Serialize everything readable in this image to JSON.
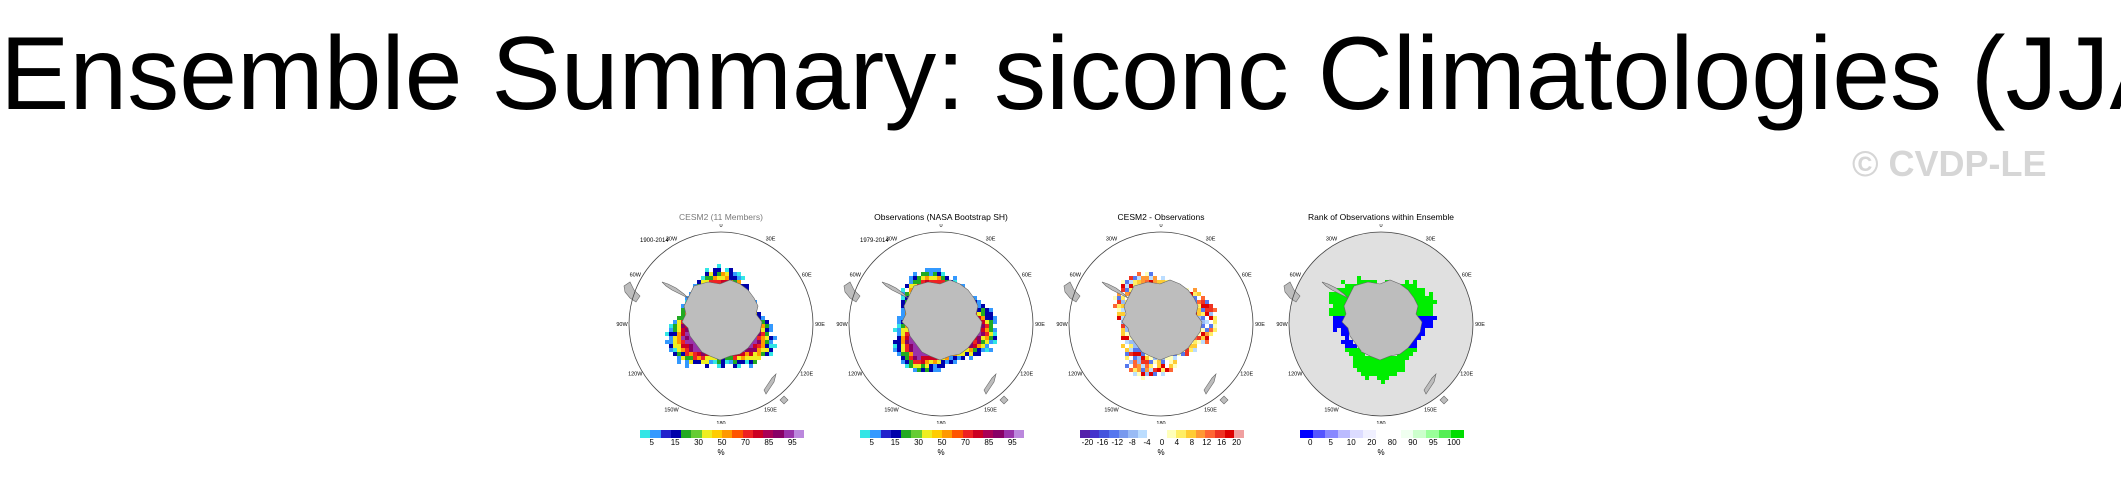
{
  "page": {
    "title": "Ensemble Summary: siconc Climatologies (JJA)",
    "watermark": "© CVDP-LE"
  },
  "panels": [
    {
      "title": "CESM2 (11 Members)",
      "period": "1900-2014",
      "colorbar_colors": [
        "#33e6e6",
        "#3399ff",
        "#2222cc",
        "#0000aa",
        "#22aa22",
        "#66cc33",
        "#eeee22",
        "#ffcc00",
        "#ff9900",
        "#ff5500",
        "#ee2222",
        "#cc0022",
        "#aa0055",
        "#880066",
        "#9933aa",
        "#bb88dd"
      ],
      "colorbar_ticks": [
        "5",
        "15",
        "30",
        "50",
        "70",
        "85",
        "95"
      ],
      "unit": "%"
    },
    {
      "title": "Observations (NASA Bootstrap SH)",
      "period": "1979-2014",
      "colorbar_colors": [
        "#33e6e6",
        "#3399ff",
        "#2222cc",
        "#0000aa",
        "#22aa22",
        "#66cc33",
        "#eeee22",
        "#ffcc00",
        "#ff9900",
        "#ff5500",
        "#ee2222",
        "#cc0022",
        "#aa0055",
        "#880066",
        "#9933aa",
        "#bb88dd"
      ],
      "colorbar_ticks": [
        "5",
        "15",
        "30",
        "50",
        "70",
        "85",
        "95"
      ],
      "unit": "%"
    },
    {
      "title": "CESM2 - Observations",
      "period": "",
      "colorbar_colors": [
        "#5522aa",
        "#4433cc",
        "#4455dd",
        "#5577ee",
        "#7799ee",
        "#99bbf5",
        "#bbddff",
        "#ffffff",
        "#ffffff",
        "#ffffbb",
        "#ffee66",
        "#ffcc33",
        "#ff9933",
        "#ff6633",
        "#ee3322",
        "#dd0000",
        "#f0a0a0"
      ],
      "colorbar_ticks": [
        "-20",
        "-16",
        "-12",
        "-8",
        "-4",
        "0",
        "4",
        "8",
        "12",
        "16",
        "20"
      ],
      "unit": "%"
    },
    {
      "title": "Rank of Observations within Ensemble",
      "period": "",
      "colorbar_colors": [
        "#0000ff",
        "#5555ff",
        "#8888ff",
        "#bbbbff",
        "#dcdcff",
        "#f0f0ff",
        "#ffffff",
        "#ffffff",
        "#f0fff0",
        "#ccffcc",
        "#99ff99",
        "#55ee55",
        "#00dd00"
      ],
      "colorbar_ticks": [
        "0",
        "5",
        "10",
        "20",
        "80",
        "90",
        "95",
        "100"
      ],
      "unit": "%"
    }
  ],
  "map_labels": {
    "lon": [
      "0",
      "30E",
      "60E",
      "90E",
      "120E",
      "150E",
      "180",
      "150W",
      "120W",
      "90W",
      "60W",
      "30W"
    ]
  },
  "colors": {
    "land": "#bdbdbd",
    "ocean": "#ffffff",
    "rank_background": "#e0e0e0"
  }
}
